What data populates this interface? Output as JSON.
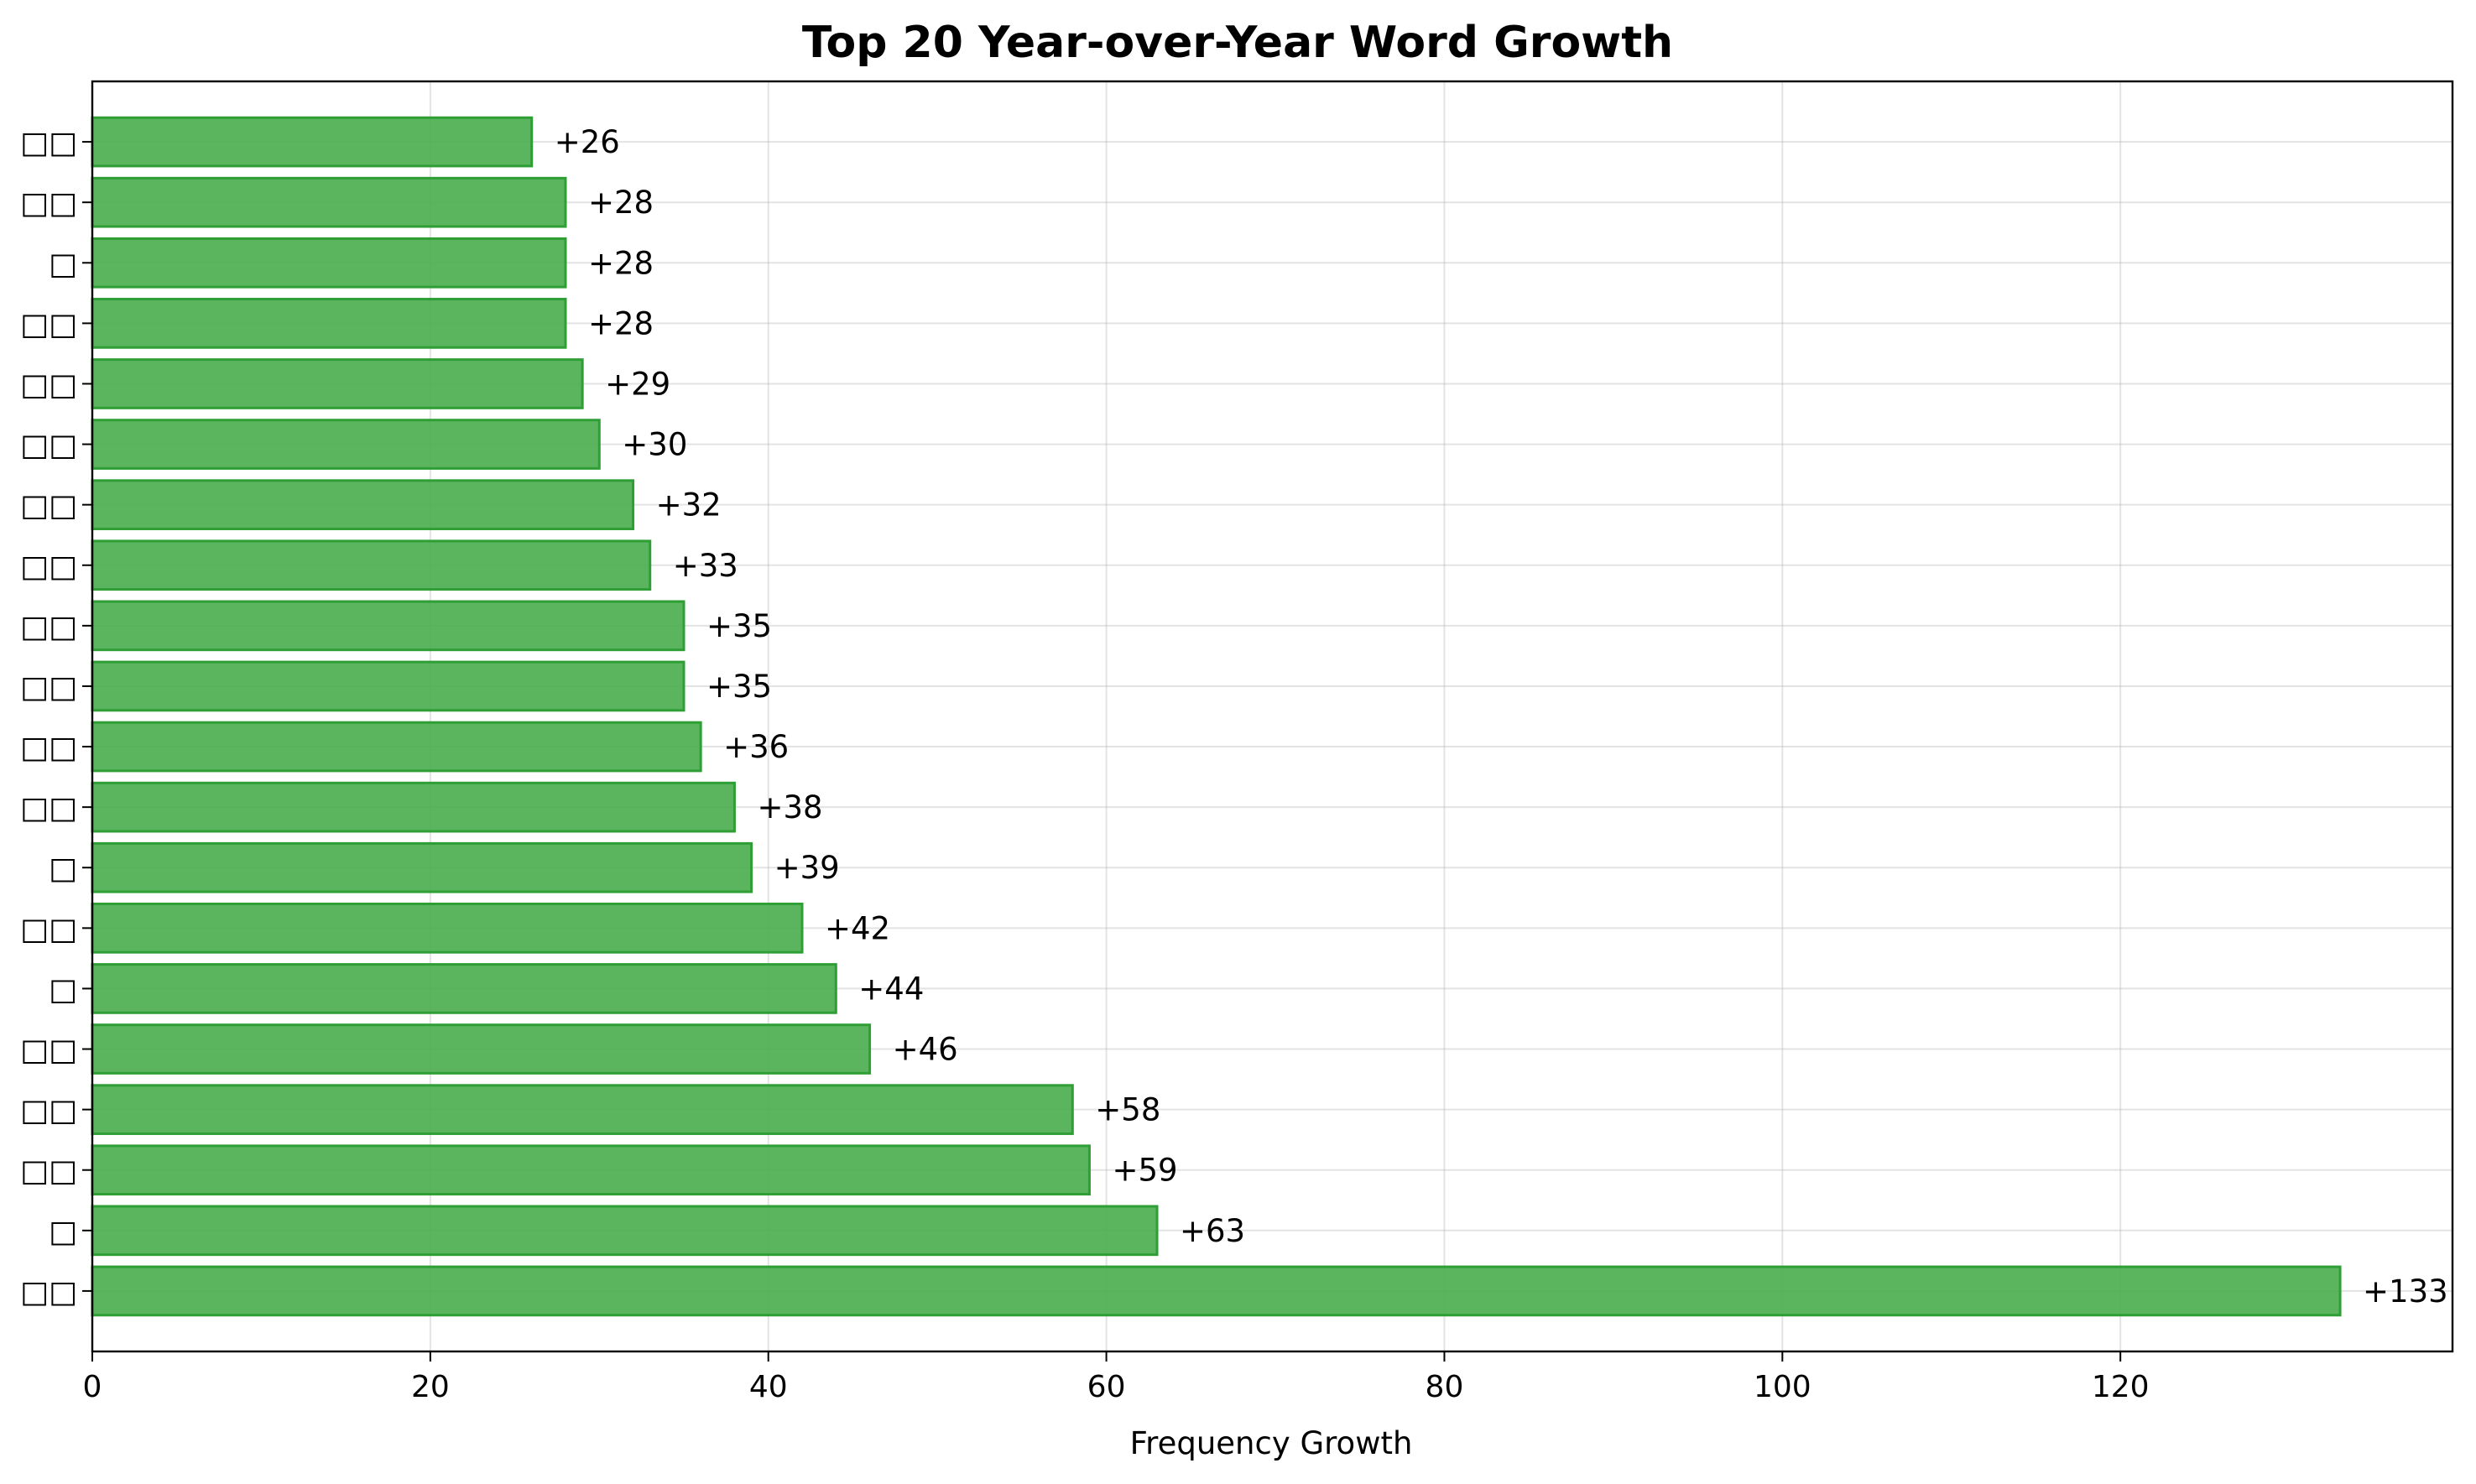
{
  "chart_data": {
    "type": "bar",
    "orientation": "horizontal",
    "title": "Top 20 Year-over-Year Word Growth",
    "xlabel": "Frequency Growth",
    "ylabel": "",
    "xlim": [
      0,
      139.65
    ],
    "xticks": [
      0,
      20,
      40,
      60,
      80,
      100,
      120
    ],
    "grid": true,
    "bar_color": "#4CAF50",
    "bar_edge_color": "#2E9E35",
    "categories": [
      "□□",
      "□",
      "□□",
      "□□",
      "□□",
      "□",
      "□□",
      "□",
      "□□",
      "□□",
      "□□",
      "□□",
      "□□",
      "□□",
      "□□",
      "□□",
      "□□",
      "□",
      "□□",
      "□□"
    ],
    "values": [
      133,
      63,
      59,
      58,
      46,
      44,
      42,
      39,
      38,
      36,
      35,
      35,
      33,
      32,
      30,
      29,
      28,
      28,
      28,
      26
    ],
    "value_labels": [
      "+133",
      "+63",
      "+59",
      "+58",
      "+46",
      "+44",
      "+42",
      "+39",
      "+38",
      "+36",
      "+35",
      "+35",
      "+33",
      "+32",
      "+30",
      "+29",
      "+28",
      "+28",
      "+28",
      "+26"
    ]
  }
}
